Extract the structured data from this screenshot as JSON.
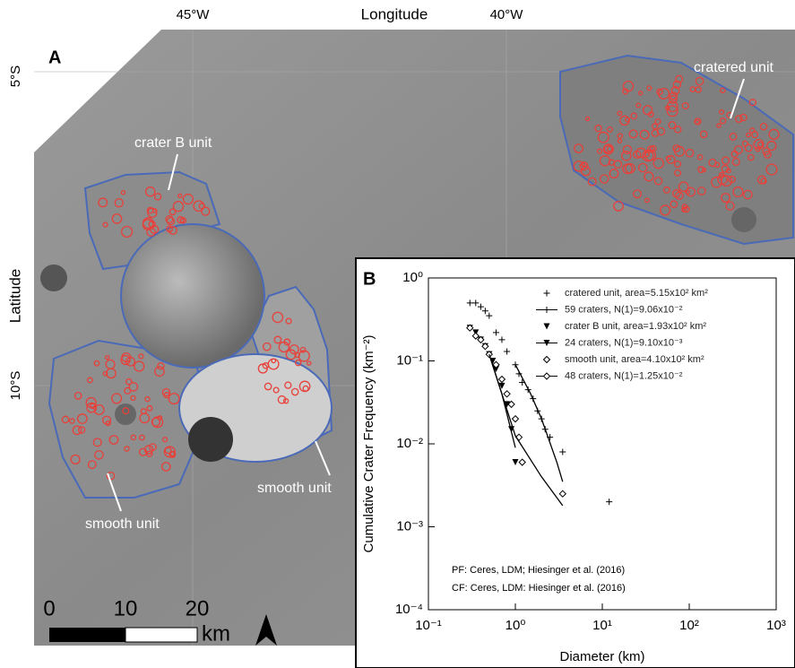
{
  "map": {
    "panel_label": "A",
    "x_axis_label": "Longitude",
    "y_axis_label": "Latitude",
    "x_ticks": [
      "45°W",
      "40°W"
    ],
    "y_ticks": [
      "5°S",
      "10°S"
    ],
    "annotations": [
      "crater B  unit",
      "cratered unit",
      "smooth unit",
      "smooth unit"
    ],
    "scale_bar": {
      "labels": [
        "0",
        "10",
        "20"
      ],
      "unit": "km"
    }
  },
  "chart_data": {
    "type": "scatter",
    "panel_label": "B",
    "x_label": "Diameter (km)",
    "y_label": "Cumulative Crater Frequency (km⁻²)",
    "log_x": true,
    "log_y": true,
    "xlim": [
      0.1,
      1000
    ],
    "ylim": [
      0.0001,
      1
    ],
    "xticks": [
      {
        "value": 0.1,
        "label": "10⁻¹"
      },
      {
        "value": 1,
        "label": "10⁰"
      },
      {
        "value": 10,
        "label": "10¹"
      },
      {
        "value": 100,
        "label": "10²"
      },
      {
        "value": 1000,
        "label": "10³"
      }
    ],
    "yticks": [
      {
        "value": 0.0001,
        "label": "10⁻⁴"
      },
      {
        "value": 0.001,
        "label": "10⁻³"
      },
      {
        "value": 0.01,
        "label": "10⁻²"
      },
      {
        "value": 0.1,
        "label": "10⁻¹"
      },
      {
        "value": 1,
        "label": "10⁰"
      }
    ],
    "series": [
      {
        "name": "cratered unit, area=5.15x10² km²",
        "marker": "plus",
        "color": "#000",
        "x": [
          0.3,
          0.35,
          0.4,
          0.45,
          0.5,
          0.6,
          0.7,
          0.8,
          1.0,
          1.1,
          1.2,
          1.4,
          1.6,
          1.8,
          2.0,
          2.2,
          2.5,
          3.5,
          12
        ],
        "values": [
          0.5,
          0.5,
          0.45,
          0.4,
          0.35,
          0.22,
          0.18,
          0.13,
          0.09,
          0.07,
          0.055,
          0.045,
          0.035,
          0.025,
          0.02,
          0.015,
          0.012,
          0.008,
          0.002
        ]
      },
      {
        "name": "59 craters, N(1)=9.06x10⁻²",
        "marker": "plus",
        "line": true,
        "color": "#000",
        "x": [
          1,
          1.5,
          2,
          3,
          3.5
        ],
        "values": [
          0.09,
          0.04,
          0.02,
          0.006,
          0.0035
        ]
      },
      {
        "name": "crater B unit, area=1.93x10² km²",
        "marker": "triangle",
        "color": "#000",
        "x": [
          0.3,
          0.35,
          0.4,
          0.45,
          0.5,
          0.55,
          0.6,
          0.7,
          0.8,
          0.9,
          1.0
        ],
        "values": [
          0.25,
          0.22,
          0.18,
          0.15,
          0.12,
          0.1,
          0.08,
          0.05,
          0.03,
          0.015,
          0.006
        ]
      },
      {
        "name": "24 craters, N(1)=9.10x10⁻³",
        "marker": "triangle",
        "line": true,
        "color": "#000",
        "x": [
          0.5,
          0.7,
          1
        ],
        "values": [
          0.12,
          0.04,
          0.009
        ]
      },
      {
        "name": "smooth  unit, area=4.10x10² km²",
        "marker": "diamond",
        "color": "#000",
        "x": [
          0.3,
          0.35,
          0.4,
          0.45,
          0.5,
          0.6,
          0.7,
          0.8,
          0.9,
          1.0,
          1.1,
          1.2,
          3.5
        ],
        "values": [
          0.25,
          0.2,
          0.18,
          0.15,
          0.12,
          0.09,
          0.06,
          0.04,
          0.03,
          0.02,
          0.012,
          0.006,
          0.0025
        ]
      },
      {
        "name": "48 craters, N(1)=1.25x10⁻²",
        "marker": "diamond",
        "line": true,
        "color": "#000",
        "x": [
          0.5,
          1,
          2,
          3.5
        ],
        "values": [
          0.12,
          0.0125,
          0.004,
          0.0018
        ]
      }
    ],
    "notes": [
      "PF: Ceres, LDM; Hiesinger et al. (2016)",
      "CF: Ceres, LDM: Hiesinger et al. (2016)"
    ]
  }
}
